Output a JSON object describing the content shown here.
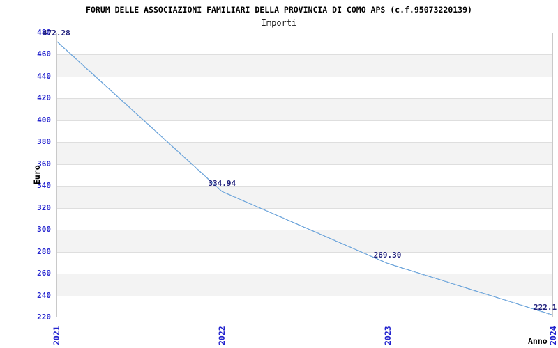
{
  "header": {
    "title": "FORUM DELLE ASSOCIAZIONI FAMILIARI DELLA PROVINCIA DI COMO APS (c.f.95073220139)",
    "subtitle": "Importi"
  },
  "chart_data": {
    "type": "line",
    "title": "FORUM DELLE ASSOCIAZIONI FAMILIARI DELLA PROVINCIA DI COMO APS (c.f.95073220139)",
    "subtitle": "Importi",
    "xlabel": "Anno",
    "ylabel": "Euro",
    "x_labels": [
      "2021",
      "2022",
      "2023",
      "2024"
    ],
    "series": [
      {
        "name": "Importi",
        "values": [
          472.28,
          334.94,
          269.3,
          222.1
        ]
      }
    ],
    "point_labels": [
      "472.28",
      "334.94",
      "269.30",
      "222.1"
    ],
    "ylim": [
      220,
      480
    ],
    "y_ticks": [
      220,
      240,
      260,
      280,
      300,
      320,
      340,
      360,
      380,
      400,
      420,
      440,
      460,
      480
    ],
    "grid": true,
    "legend": "none",
    "banding": "alternating horizontal bands",
    "colors": {
      "line": "#74a9dc",
      "tick_label": "#2323ce",
      "point_label": "#20207c",
      "band": "#f3f3f3",
      "gridline": "#dedede",
      "axis_border": "#c9c9c9",
      "title_text": "#000000"
    }
  }
}
